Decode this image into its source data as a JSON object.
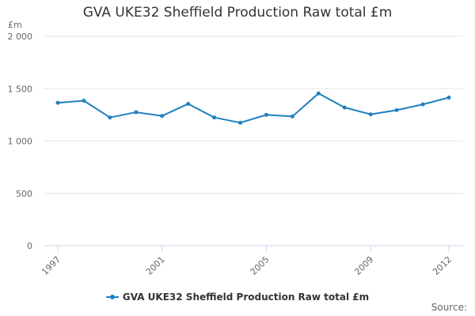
{
  "colors": {
    "series": "#1f7fbf",
    "grid": "#e6e6e6",
    "axis": "#ccd6eb",
    "tick_text": "#666666"
  },
  "source_label": "Source:",
  "chart_data": {
    "type": "line",
    "title": "GVA UKE32 Sheffield Production Raw total £m",
    "ylabel": "£m",
    "xlabel": "",
    "ylim": [
      0,
      2000
    ],
    "y_ticks": [
      {
        "value": 0,
        "label": "0"
      },
      {
        "value": 500,
        "label": "500"
      },
      {
        "value": 1000,
        "label": "1 000"
      },
      {
        "value": 1500,
        "label": "1 500"
      },
      {
        "value": 2000,
        "label": "2 000"
      }
    ],
    "x_ticks": [
      {
        "value": 1997,
        "label": "1997"
      },
      {
        "value": 2001,
        "label": "2001"
      },
      {
        "value": 2005,
        "label": "2005"
      },
      {
        "value": 2009,
        "label": "2009"
      },
      {
        "value": 2012,
        "label": "2012"
      }
    ],
    "x": [
      1997,
      1998,
      1999,
      2000,
      2001,
      2002,
      2003,
      2004,
      2005,
      2006,
      2007,
      2008,
      2009,
      2010,
      2011,
      2012
    ],
    "series": [
      {
        "name": "GVA UKE32 Sheffield Production Raw total £m",
        "values": [
          1365,
          1385,
          1225,
          1275,
          1240,
          1355,
          1225,
          1175,
          1250,
          1235,
          1455,
          1320,
          1255,
          1295,
          1350,
          1415
        ]
      }
    ],
    "legend_position": "bottom",
    "grid": true
  }
}
